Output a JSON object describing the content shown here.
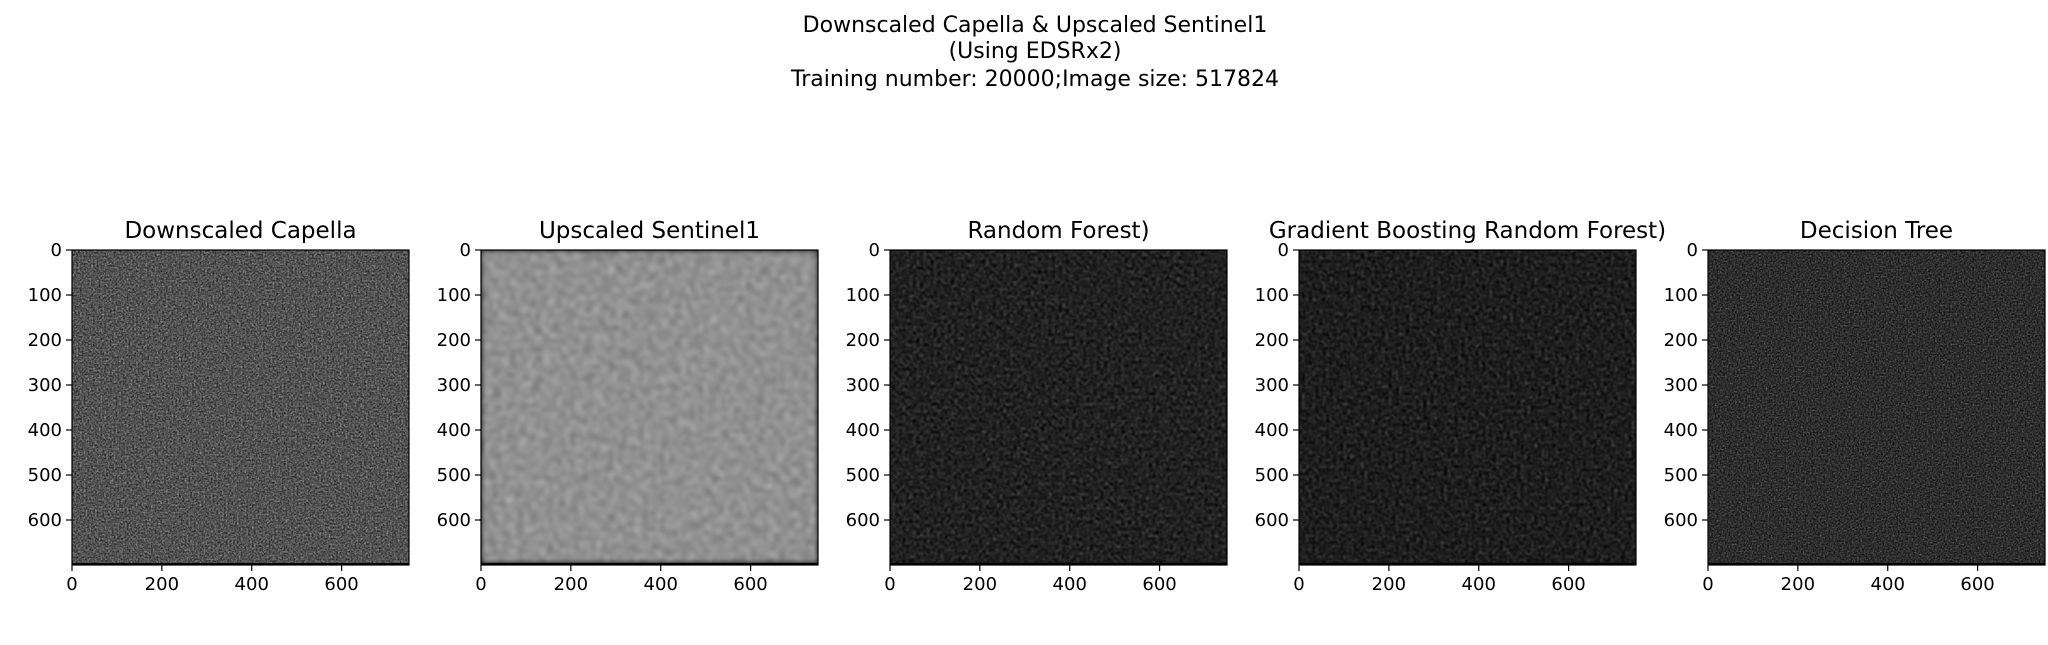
{
  "suptitle": [
    "Downscaled Capella & Upscaled Sentinel1",
    "(Using EDSRx2)",
    "Training number: 20000;Image size: 517824"
  ],
  "chart_data": {
    "type": "image-grid",
    "colormap": "gray",
    "background": "#000000",
    "panels": [
      {
        "title": "Downscaled Capella",
        "brightness": 0.62,
        "speckle": 0.9,
        "blur": 0.0,
        "seed": 11
      },
      {
        "title": "Upscaled Sentinel1",
        "brightness": 0.85,
        "speckle": 0.35,
        "blur": 2.6,
        "seed": 23
      },
      {
        "title": "Random Forest)",
        "brightness": 0.38,
        "speckle": 0.45,
        "blur": 0.7,
        "seed": 37
      },
      {
        "title": "Gradient Boosting Random Forest)",
        "brightness": 0.36,
        "speckle": 0.45,
        "blur": 0.8,
        "seed": 41
      },
      {
        "title": "Decision Tree",
        "brightness": 0.45,
        "speckle": 1.0,
        "blur": 0.0,
        "seed": 53
      }
    ],
    "x_ticks": [
      "0",
      "200",
      "400",
      "600"
    ],
    "y_ticks": [
      "0",
      "100",
      "200",
      "300",
      "400",
      "500",
      "600"
    ],
    "xlim": [
      0,
      750
    ],
    "ylim": [
      700,
      0
    ]
  }
}
